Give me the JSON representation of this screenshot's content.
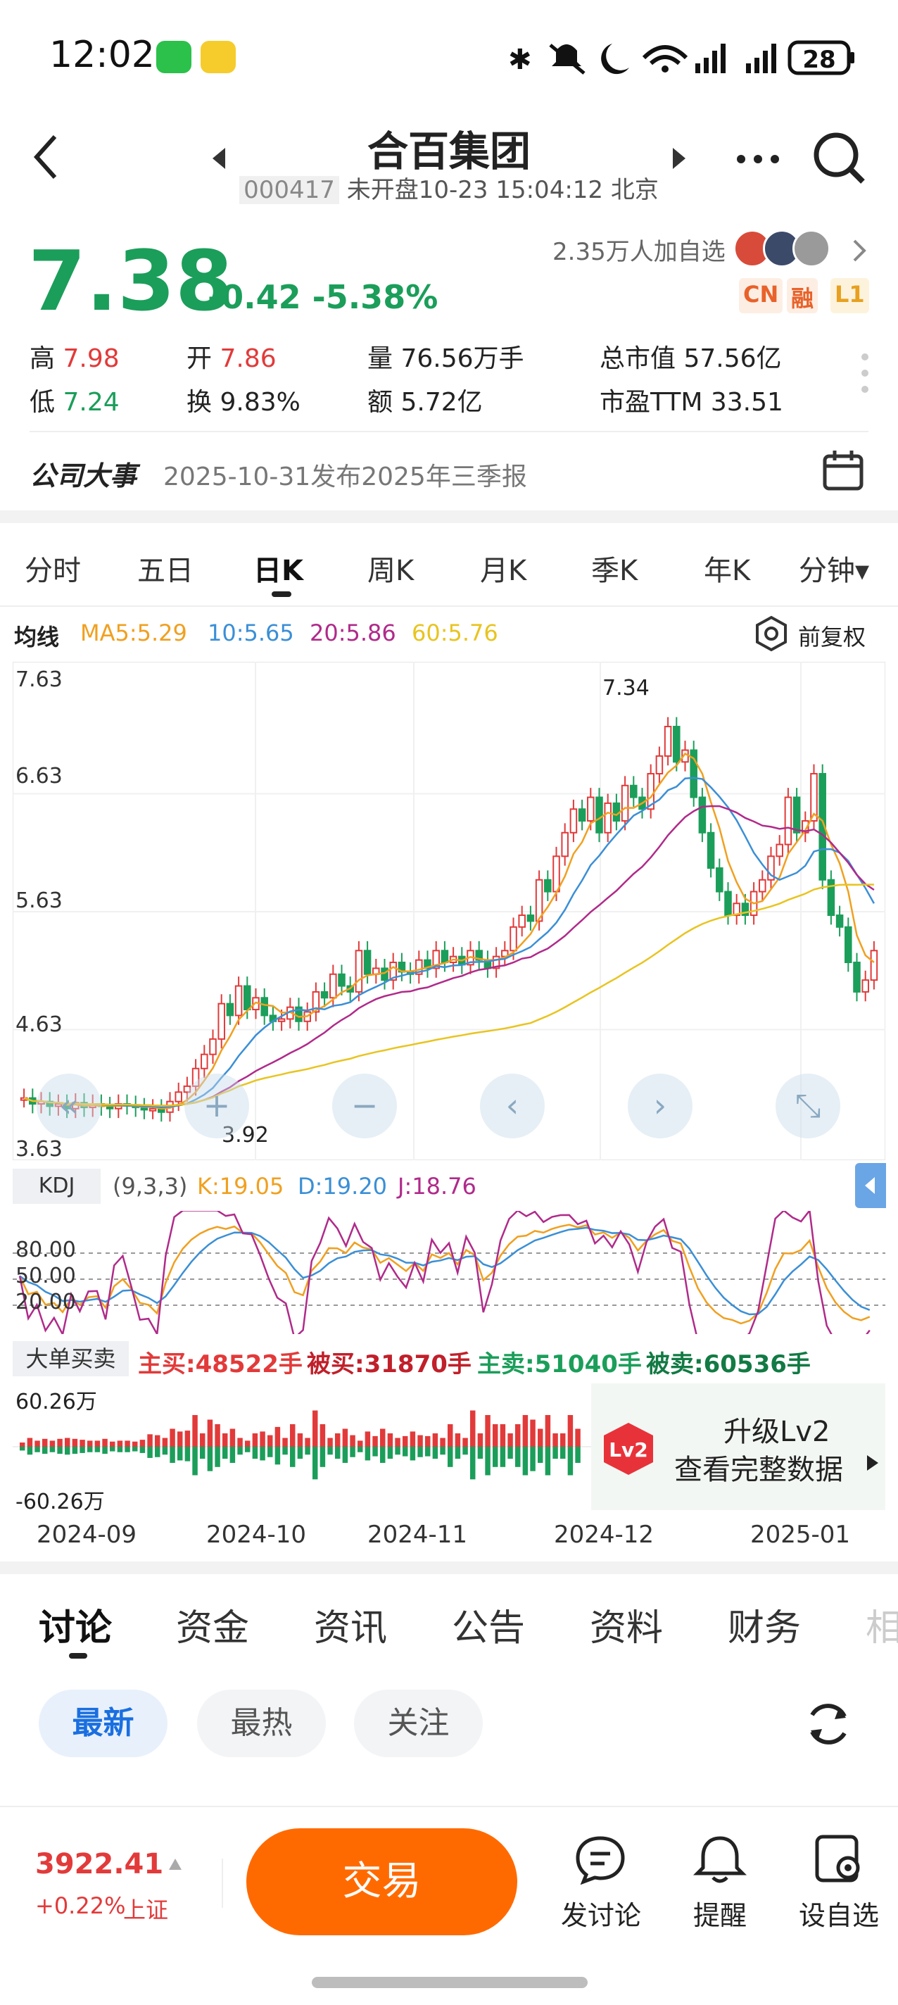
{
  "status": {
    "time": "12:02",
    "battery": "28"
  },
  "header": {
    "title": "合百集团",
    "code": "000417",
    "subtitle": "未开盘10-23 15:04:12 北京"
  },
  "quote": {
    "price": "7.38",
    "change": "-0.42",
    "change_pct": "-5.38%",
    "followers": "2.35万人加自选",
    "tags": [
      "CN",
      "融",
      "L1"
    ],
    "high_label": "高",
    "high": "7.98",
    "low_label": "低",
    "low": "7.24",
    "open_label": "开",
    "open": "7.86",
    "turnover_label": "换",
    "turnover": "9.83%",
    "volume_label": "量",
    "volume": "76.56万手",
    "amount_label": "额",
    "amount": "5.72亿",
    "mktcap_label": "总市值",
    "mktcap": "57.56亿",
    "pe_label": "市盈TTM",
    "pe": "33.51"
  },
  "events": {
    "label": "公司大事",
    "text": "2025-10-31发布2025年三季报"
  },
  "chart_tabs": [
    "分时",
    "五日",
    "日K",
    "周K",
    "月K",
    "季K",
    "年K",
    "分钟▾"
  ],
  "ma_legend": {
    "label": "均线",
    "ma5": "MA5:5.29",
    "ma10": "10:5.65",
    "ma20": "20:5.86",
    "ma60": "60:5.76",
    "adjust": "前复权"
  },
  "colors": {
    "up": "#e23a3a",
    "down": "#1b9e5a",
    "ma5": "#f0a020",
    "ma10": "#3b8fd6",
    "ma20": "#b02a8a",
    "ma60": "#e8c420",
    "trade": "#ff6a00"
  },
  "chart_data": {
    "type": "candlestick",
    "y_ticks": [
      "7.63",
      "6.63",
      "5.63",
      "4.63",
      "3.63"
    ],
    "ylim": [
      3.63,
      7.63
    ],
    "x_labels": [
      "2024-09",
      "2024-10",
      "2024-11",
      "2024-12",
      "2025-01"
    ],
    "max_label": "7.34",
    "min_label": "3.92",
    "closes": [
      4.05,
      4.0,
      4.02,
      3.98,
      4.0,
      3.96,
      4.01,
      3.97,
      4.0,
      3.98,
      3.96,
      4.0,
      3.99,
      3.97,
      3.95,
      3.96,
      3.93,
      4.02,
      4.1,
      4.15,
      4.3,
      4.42,
      4.55,
      4.85,
      4.75,
      5.0,
      4.8,
      4.9,
      4.75,
      4.7,
      4.72,
      4.82,
      4.7,
      4.78,
      4.95,
      4.9,
      5.1,
      5.0,
      4.95,
      5.3,
      5.1,
      5.15,
      5.05,
      5.2,
      5.12,
      5.1,
      5.22,
      5.15,
      5.3,
      5.2,
      5.25,
      5.18,
      5.3,
      5.22,
      5.15,
      5.25,
      5.3,
      5.5,
      5.6,
      5.55,
      5.9,
      5.8,
      6.1,
      6.3,
      6.5,
      6.4,
      6.6,
      6.3,
      6.55,
      6.4,
      6.7,
      6.6,
      6.5,
      6.8,
      6.95,
      7.2,
      6.9,
      7.0,
      6.6,
      6.3,
      6.0,
      5.8,
      5.6,
      5.7,
      5.6,
      5.8,
      5.9,
      6.1,
      6.2,
      6.6,
      6.3,
      6.4,
      6.8,
      5.9,
      5.6,
      5.5,
      5.2,
      4.95,
      5.05,
      5.3
    ],
    "series": [
      {
        "name": "MA5",
        "values": "5.29"
      },
      {
        "name": "MA10",
        "values": "5.65"
      },
      {
        "name": "MA20",
        "values": "5.86"
      },
      {
        "name": "MA60",
        "values": "5.76"
      }
    ]
  },
  "controls": [
    "«",
    "+",
    "−",
    "‹",
    "›",
    "⤡"
  ],
  "kdj": {
    "label": "KDJ",
    "params": "(9,3,3)",
    "k": "K:19.05",
    "d": "D:19.20",
    "j": "J:18.76",
    "levels": [
      "80.00",
      "50.00",
      "20.00"
    ]
  },
  "big_orders": {
    "label": "大单买卖",
    "main_buy": "主买:48522手",
    "passive_buy": "被买:31870手",
    "main_sell": "主卖:51040手",
    "passive_sell": "被卖:60536手",
    "top": "60.26万",
    "bottom": "-60.26万",
    "upgrade_title": "升级Lv2",
    "upgrade_sub": "查看完整数据",
    "lv2_badge": "Lv2"
  },
  "bottom_tabs": [
    "讨论",
    "资金",
    "资讯",
    "公告",
    "资料",
    "财务",
    "相"
  ],
  "filters": [
    "最新",
    "最热",
    "关注"
  ],
  "footer": {
    "index_value": "3922.41",
    "index_change": "+0.22%",
    "index_name": "上证",
    "trade": "交易",
    "discuss": "发讨论",
    "alert": "提醒",
    "watch": "设自选"
  }
}
